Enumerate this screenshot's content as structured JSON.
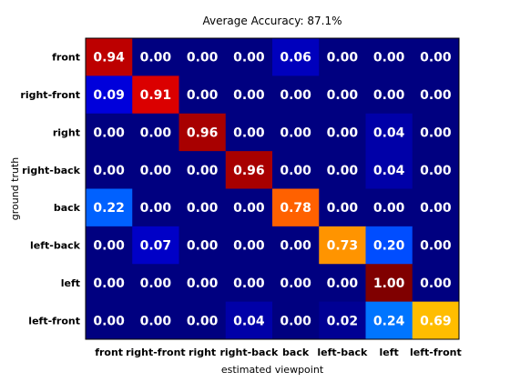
{
  "chart_data": {
    "type": "heatmap",
    "title": "Average Accuracy: 87.1%",
    "xlabel": "estimated viewpoint",
    "ylabel": "ground truth",
    "x_categories": [
      "front",
      "right-front",
      "right",
      "right-back",
      "back",
      "left-back",
      "left",
      "left-front"
    ],
    "y_categories": [
      "front",
      "right-front",
      "right",
      "right-back",
      "back",
      "left-back",
      "left",
      "left-front"
    ],
    "values": [
      [
        0.94,
        0.0,
        0.0,
        0.0,
        0.06,
        0.0,
        0.0,
        0.0
      ],
      [
        0.09,
        0.91,
        0.0,
        0.0,
        0.0,
        0.0,
        0.0,
        0.0
      ],
      [
        0.0,
        0.0,
        0.96,
        0.0,
        0.0,
        0.0,
        0.04,
        0.0
      ],
      [
        0.0,
        0.0,
        0.0,
        0.96,
        0.0,
        0.0,
        0.04,
        0.0
      ],
      [
        0.22,
        0.0,
        0.0,
        0.0,
        0.78,
        0.0,
        0.0,
        0.0
      ],
      [
        0.0,
        0.07,
        0.0,
        0.0,
        0.0,
        0.73,
        0.2,
        0.0
      ],
      [
        0.0,
        0.0,
        0.0,
        0.0,
        0.0,
        0.0,
        1.0,
        0.0
      ],
      [
        0.0,
        0.0,
        0.0,
        0.04,
        0.0,
        0.02,
        0.24,
        0.69
      ]
    ],
    "value_range": [
      0,
      1
    ],
    "colormap": "jet-like",
    "grid": false,
    "legend": "none"
  }
}
